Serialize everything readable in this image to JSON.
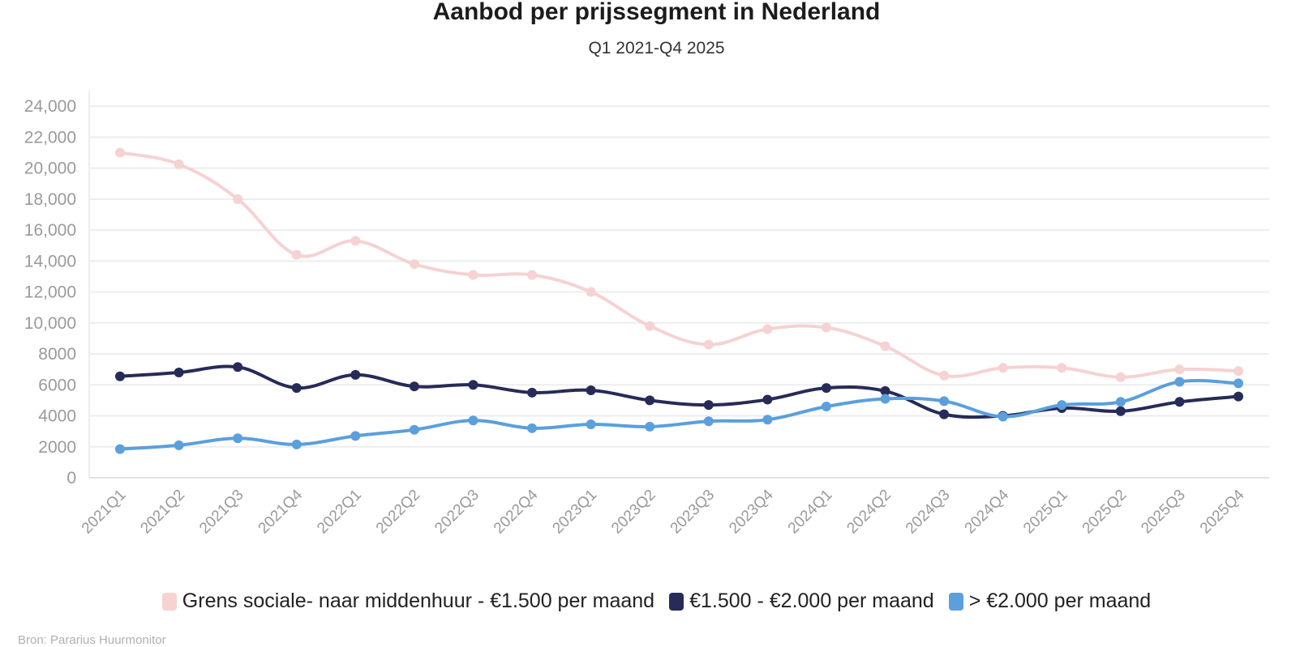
{
  "chart_data": {
    "type": "line",
    "title": "Aanbod per prijssegment in Nederland",
    "subtitle": "Q1 2021-Q4 2025",
    "xlabel": "",
    "ylabel": "",
    "ylim": [
      0,
      25000
    ],
    "yticks": [
      0,
      2000,
      4000,
      6000,
      8000,
      10000,
      12000,
      14000,
      16000,
      18000,
      20000,
      22000,
      24000
    ],
    "ytick_labels": [
      "0",
      "2000",
      "4000",
      "6000",
      "8000",
      "10,000",
      "12,000",
      "14,000",
      "16,000",
      "18,000",
      "20,000",
      "22,000",
      "24,000"
    ],
    "grid": true,
    "legend_position": "bottom",
    "categories": [
      "2021Q1",
      "2021Q2",
      "2021Q3",
      "2021Q4",
      "2022Q1",
      "2022Q2",
      "2022Q3",
      "2022Q4",
      "2023Q1",
      "2023Q2",
      "2023Q3",
      "2023Q4",
      "2024Q1",
      "2024Q2",
      "2024Q3",
      "2024Q4",
      "2025Q1",
      "2025Q2",
      "2025Q3",
      "2025Q4"
    ],
    "series": [
      {
        "name": "Grens sociale- naar middenhuur - €1.500 per maand",
        "color": "#f6d2d2",
        "values": [
          21000,
          20250,
          18000,
          14400,
          15300,
          13800,
          13100,
          13100,
          12000,
          9800,
          8600,
          9600,
          9700,
          8500,
          6600,
          7100,
          7100,
          6500,
          7000,
          6900
        ]
      },
      {
        "name": "€1.500 - €2.000 per maand",
        "color": "#262b57",
        "values": [
          6550,
          6800,
          7150,
          5800,
          6650,
          5900,
          6000,
          5500,
          5650,
          5000,
          4700,
          5050,
          5800,
          5600,
          4100,
          4000,
          4500,
          4300,
          4900,
          5250
        ]
      },
      {
        "name": "> €2.000 per maand",
        "color": "#5b9fdc",
        "values": [
          1850,
          2100,
          2550,
          2150,
          2700,
          3100,
          3700,
          3200,
          3450,
          3300,
          3650,
          3750,
          4600,
          5100,
          4950,
          3950,
          4700,
          4900,
          6200,
          6100
        ]
      }
    ]
  },
  "footer": {
    "source": "Bron: Pararius Huurmonitor"
  }
}
